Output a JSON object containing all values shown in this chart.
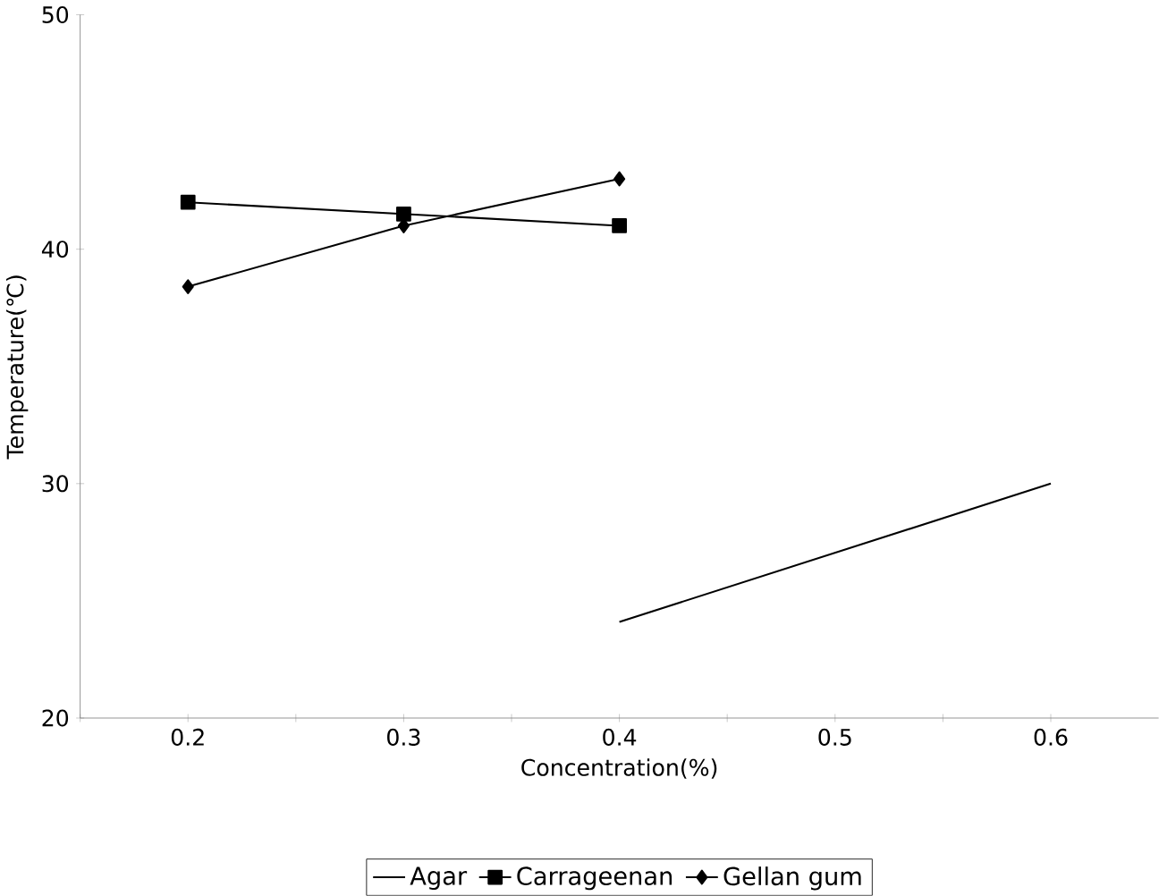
{
  "chart_data": {
    "type": "line",
    "xlabel": "Concentration(%)",
    "ylabel": "Temperature(℃)",
    "xlim": [
      0.15,
      0.65
    ],
    "ylim": [
      20,
      50
    ],
    "xticks": [
      {
        "value": 0.15,
        "label": null
      },
      0.2,
      {
        "value": 0.25,
        "label": null
      },
      0.3,
      {
        "value": 0.35,
        "label": null
      },
      0.4,
      {
        "value": 0.45,
        "label": null
      },
      0.5,
      {
        "value": 0.55,
        "label": null
      },
      0.6
    ],
    "yticks": [
      20,
      30,
      40,
      50
    ],
    "legend": "bottom",
    "line_style": "solid",
    "series": [
      {
        "name": "Agar",
        "color": "#000000",
        "marker": "none",
        "x": [
          0.4,
          0.6
        ],
        "values": [
          24.1,
          30
        ]
      },
      {
        "name": "Carrageenan",
        "color": "#000000",
        "marker": "square",
        "x": [
          0.2,
          0.3,
          0.4
        ],
        "values": [
          42,
          41.5,
          41
        ]
      },
      {
        "name": "Gellan gum",
        "color": "#000000",
        "marker": "diamond",
        "x": [
          0.2,
          0.3,
          0.4
        ],
        "values": [
          38.4,
          41,
          43
        ]
      }
    ]
  }
}
